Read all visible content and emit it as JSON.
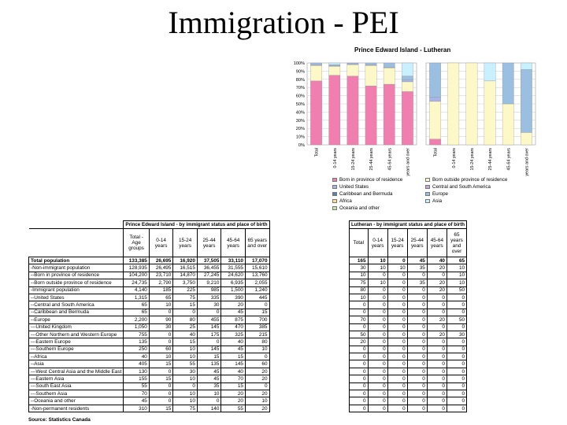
{
  "slide_title": "Immigration - PEI",
  "source": "Source: Statistics Canada",
  "chart_data": {
    "type": "bar",
    "stacked": true,
    "title": "Prince Edward Island - Lutheran",
    "ylim": [
      0,
      100
    ],
    "yticks": [
      "0%",
      "10%",
      "20%",
      "30%",
      "40%",
      "50%",
      "60%",
      "70%",
      "80%",
      "90%",
      "100%"
    ],
    "grid": true,
    "groups": [
      {
        "name": "Prince Edward Island",
        "categories": [
          "Total",
          "0-14 years",
          "15-24 years",
          "25-44 years",
          "45-64 years",
          "65 years and over"
        ]
      },
      {
        "name": "Lutheran",
        "categories": [
          "Total",
          "0-14 years",
          "15-24 years",
          "25-44 years",
          "45-64 years",
          "65 years and over"
        ]
      }
    ],
    "series": [
      {
        "name": "Born in province of residence",
        "color": "#f07fb0",
        "values": [
          78,
          85,
          84,
          72,
          74,
          65,
          7,
          0,
          0,
          0,
          0,
          0
        ]
      },
      {
        "name": "Born outside province of residence",
        "color": "#fdf8c8",
        "values": [
          19,
          11,
          14,
          25,
          20,
          12,
          46,
          100,
          100,
          78,
          50,
          15
        ]
      },
      {
        "name": "United States",
        "color": "#a9b5e8",
        "values": [
          1,
          1,
          1,
          1,
          1,
          2,
          5,
          0,
          0,
          0,
          0,
          0
        ]
      },
      {
        "name": "Central and South America",
        "color": "#c7a8d6",
        "values": [
          0,
          0,
          0,
          0,
          0,
          0,
          0,
          0,
          0,
          0,
          0,
          0
        ]
      },
      {
        "name": "Caribbean and Bermuda",
        "color": "#5d7fb2",
        "values": [
          0,
          0,
          0,
          0,
          0,
          0,
          0,
          0,
          0,
          0,
          0,
          0
        ]
      },
      {
        "name": "Europe",
        "color": "#9bbfe0",
        "values": [
          2,
          1,
          1,
          2,
          5,
          5,
          42,
          0,
          0,
          0,
          50,
          77
        ]
      },
      {
        "name": "Africa",
        "color": "#ffe08a",
        "values": [
          0,
          0,
          0,
          0,
          0,
          0,
          0,
          0,
          0,
          0,
          0,
          0
        ]
      },
      {
        "name": "Asia",
        "color": "#c8f0ff",
        "values": [
          0,
          2,
          0,
          0,
          0,
          16,
          0,
          0,
          0,
          22,
          0,
          8
        ]
      },
      {
        "name": "Oceania and other",
        "color": "#c9e3a8",
        "values": [
          0,
          0,
          0,
          0,
          0,
          0,
          0,
          0,
          0,
          0,
          0,
          0
        ]
      }
    ],
    "legend_position": "bottom"
  },
  "tables": {
    "pei": {
      "title": "Prince Edward Island - by immigrant status and place of birth",
      "headers": [
        "Total - Age groups",
        "0-14 years",
        "15-24 years",
        "25-44 years",
        "45-64 years",
        "65 years and over"
      ]
    },
    "lutheran": {
      "title": "Lutheran - by immigrant status and place of birth",
      "headers": [
        "Total",
        "0-14 years",
        "15-24 years",
        "25-44 years",
        "45-64 years",
        "65 years and over"
      ]
    },
    "rows": [
      {
        "label": "Total population",
        "pei": [
          "133,385",
          "26,695",
          "16,920",
          "37,505",
          "33,110",
          "17,070"
        ],
        "luth": [
          "165",
          "10",
          "0",
          "45",
          "40",
          "65"
        ]
      },
      {
        "label": "-Non-immigrant population",
        "pei": [
          "128,935",
          "26,495",
          "16,515",
          "36,455",
          "31,555",
          "15,610"
        ],
        "luth": [
          "30",
          "10",
          "10",
          "35",
          "20",
          "10"
        ]
      },
      {
        "label": "--Born in province of residence",
        "pei": [
          "104,200",
          "23,710",
          "14,870",
          "27,245",
          "24,620",
          "13,760"
        ],
        "luth": [
          "10",
          "0",
          "0",
          "0",
          "0",
          "10"
        ]
      },
      {
        "label": "--Born outside province of residence",
        "pei": [
          "24,735",
          "2,790",
          "3,750",
          "9,210",
          "6,935",
          "2,055"
        ],
        "luth": [
          "75",
          "10",
          "0",
          "35",
          "20",
          "10"
        ]
      },
      {
        "label": "-Immigrant population",
        "pei": [
          "4,140",
          "185",
          "225",
          "985",
          "1,500",
          "1,240"
        ],
        "luth": [
          "80",
          "0",
          "0",
          "0",
          "20",
          "50"
        ]
      },
      {
        "label": "--United States",
        "pei": [
          "1,315",
          "65",
          "75",
          "335",
          "390",
          "445"
        ],
        "luth": [
          "10",
          "0",
          "0",
          "0",
          "0",
          "0"
        ]
      },
      {
        "label": "--Central and South America",
        "pei": [
          "65",
          "10",
          "15",
          "30",
          "20",
          "0"
        ],
        "luth": [
          "0",
          "0",
          "0",
          "0",
          "0",
          "0"
        ]
      },
      {
        "label": "--Caribbean and Bermuda",
        "pei": [
          "65",
          "0",
          "0",
          "0",
          "45",
          "15"
        ],
        "luth": [
          "0",
          "0",
          "0",
          "0",
          "0",
          "0"
        ]
      },
      {
        "label": "--Europe",
        "pei": [
          "2,200",
          "90",
          "80",
          "455",
          "875",
          "700"
        ],
        "luth": [
          "70",
          "0",
          "0",
          "0",
          "20",
          "50"
        ]
      },
      {
        "label": "---United Kingdom",
        "pei": [
          "1,050",
          "30",
          "25",
          "145",
          "470",
          "385"
        ],
        "luth": [
          "0",
          "0",
          "0",
          "0",
          "0",
          "0"
        ]
      },
      {
        "label": "---Other Northern and Western Europe",
        "pei": [
          "755",
          "0",
          "40",
          "175",
          "325",
          "215"
        ],
        "luth": [
          "50",
          "0",
          "0",
          "0",
          "20",
          "30"
        ]
      },
      {
        "label": "---Eastern Europe",
        "pei": [
          "135",
          "0",
          "15",
          "0",
          "40",
          "80"
        ],
        "luth": [
          "20",
          "0",
          "0",
          "0",
          "0",
          "0"
        ]
      },
      {
        "label": "---Southern Europe",
        "pei": [
          "250",
          "60",
          "10",
          "145",
          "45",
          "10"
        ],
        "luth": [
          "0",
          "0",
          "0",
          "0",
          "0",
          "0"
        ]
      },
      {
        "label": "--Africa",
        "pei": [
          "40",
          "10",
          "10",
          "15",
          "15",
          "0"
        ],
        "luth": [
          "0",
          "0",
          "0",
          "0",
          "0",
          "0"
        ]
      },
      {
        "label": "--Asia",
        "pei": [
          "405",
          "15",
          "55",
          "135",
          "145",
          "60"
        ],
        "luth": [
          "0",
          "0",
          "0",
          "0",
          "0",
          "0"
        ]
      },
      {
        "label": "---West Central Asia and the Middle East",
        "pei": [
          "130",
          "0",
          "30",
          "45",
          "40",
          "20"
        ],
        "luth": [
          "0",
          "0",
          "0",
          "0",
          "0",
          "0"
        ]
      },
      {
        "label": "---Eastern Asia",
        "pei": [
          "155",
          "15",
          "10",
          "45",
          "70",
          "20"
        ],
        "luth": [
          "0",
          "0",
          "0",
          "0",
          "0",
          "0"
        ]
      },
      {
        "label": "---South East Asia",
        "pei": [
          "55",
          "0",
          "0",
          "35",
          "15",
          "0"
        ],
        "luth": [
          "0",
          "0",
          "0",
          "0",
          "0",
          "0"
        ]
      },
      {
        "label": "---Southern Asia",
        "pei": [
          "70",
          "0",
          "10",
          "10",
          "20",
          "20"
        ],
        "luth": [
          "0",
          "0",
          "0",
          "0",
          "0",
          "0"
        ]
      },
      {
        "label": "--Oceania and other",
        "pei": [
          "45",
          "0",
          "10",
          "0",
          "20",
          "10"
        ],
        "luth": [
          "0",
          "0",
          "0",
          "0",
          "0",
          "0"
        ]
      },
      {
        "label": "-Non-permanent residents",
        "pei": [
          "310",
          "15",
          "75",
          "140",
          "55",
          "20"
        ],
        "luth": [
          "0",
          "0",
          "0",
          "0",
          "0",
          "0"
        ]
      }
    ]
  }
}
